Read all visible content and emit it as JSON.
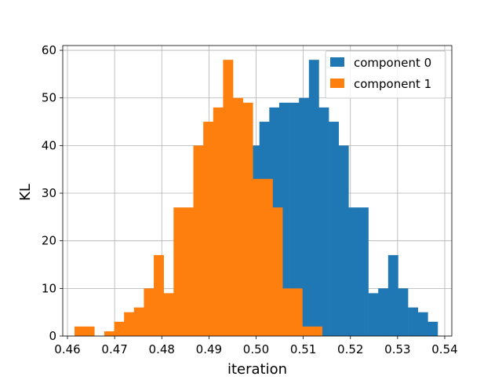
{
  "chart_data": {
    "type": "histogram",
    "title": "",
    "xlabel": "iteration",
    "ylabel": "KL",
    "xlim": [
      0.459,
      0.5415
    ],
    "ylim": [
      0,
      61
    ],
    "xticks": [
      0.46,
      0.47,
      0.48,
      0.49,
      0.5,
      0.51,
      0.52,
      0.53,
      0.54
    ],
    "xtick_labels": [
      "0.46",
      "0.47",
      "0.48",
      "0.49",
      "0.50",
      "0.51",
      "0.52",
      "0.53",
      "0.54"
    ],
    "yticks": [
      0,
      10,
      20,
      30,
      40,
      50,
      60
    ],
    "ytick_labels": [
      "0",
      "10",
      "20",
      "30",
      "40",
      "50",
      "60"
    ],
    "grid": true,
    "legend_position": "top-right",
    "series": [
      {
        "name": "component 0",
        "color": "#1f77b4",
        "bin_edges": [
          0.4755,
          0.4776,
          0.4797,
          0.4818,
          0.4839,
          0.486,
          0.4881,
          0.4902,
          0.4923,
          0.4944,
          0.4965,
          0.4986,
          0.5007,
          0.5028,
          0.5049,
          0.507,
          0.5091,
          0.5112,
          0.5133,
          0.5154,
          0.5175,
          0.5196,
          0.5217,
          0.5238,
          0.5259,
          0.528,
          0.5301,
          0.5322,
          0.5343,
          0.5364,
          0.5385
        ],
        "counts": [
          1,
          0,
          2,
          3,
          5,
          6,
          10,
          17,
          9,
          27,
          27,
          40,
          45,
          48,
          49,
          49,
          50,
          58,
          48,
          45,
          40,
          27,
          27,
          9,
          10,
          17,
          10,
          6,
          5,
          3
        ]
      },
      {
        "name": "component 1",
        "color": "#ff7f0e",
        "bin_edges": [
          0.4615,
          0.4636,
          0.4657,
          0.4678,
          0.4699,
          0.472,
          0.4741,
          0.4762,
          0.4783,
          0.4804,
          0.4825,
          0.4846,
          0.4867,
          0.4888,
          0.4909,
          0.493,
          0.4951,
          0.4972,
          0.4993,
          0.5014,
          0.5035,
          0.5056,
          0.5077,
          0.5098,
          0.5119,
          0.514
        ],
        "counts": [
          2,
          2,
          0,
          1,
          3,
          5,
          6,
          10,
          17,
          9,
          27,
          27,
          40,
          45,
          48,
          58,
          50,
          49,
          33,
          33,
          27,
          10,
          10,
          2,
          2
        ]
      }
    ]
  },
  "legend": {
    "items": [
      {
        "label": "component 0",
        "color": "#1f77b4"
      },
      {
        "label": "component 1",
        "color": "#ff7f0e"
      }
    ]
  }
}
